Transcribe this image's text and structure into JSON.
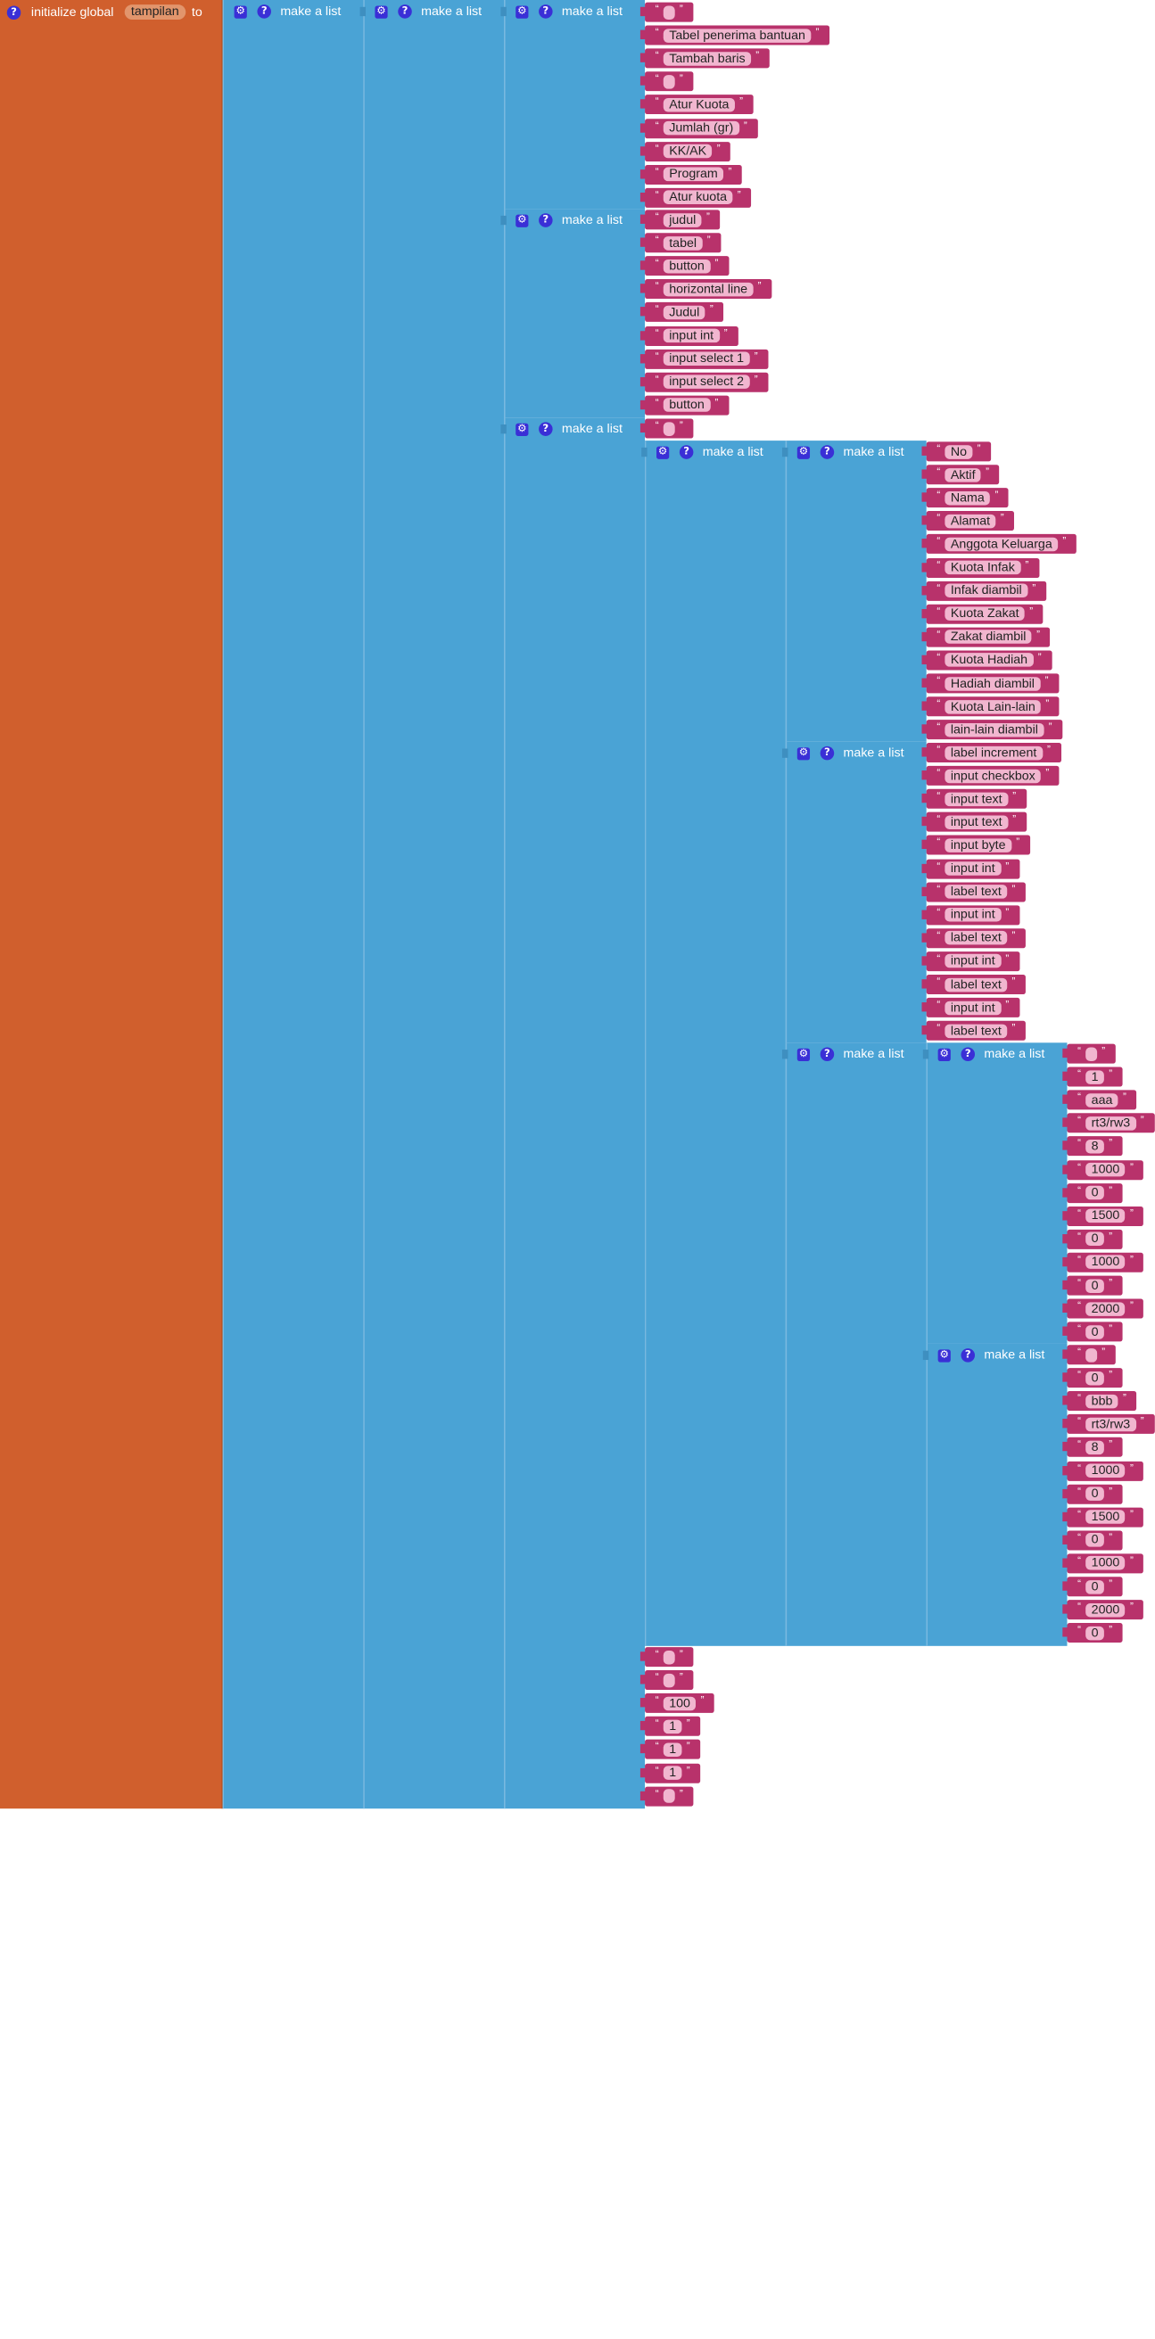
{
  "init": {
    "label": "initialize global",
    "var": "tampilan",
    "to": "to"
  },
  "make_list_label": "make a list",
  "l4a": [
    "",
    "Tabel penerima bantuan",
    "Tambah baris",
    "",
    "Atur Kuota",
    "Jumlah (gr)",
    "KK/AK",
    "Program",
    "Atur kuota"
  ],
  "l4b": [
    "judul",
    "tabel",
    "button",
    "horizontal line",
    "Judul",
    "input int",
    "input select 1",
    "input select 2",
    "button"
  ],
  "l4c_top": [
    ""
  ],
  "l6a": [
    "No",
    "Aktif",
    "Nama",
    "Alamat",
    "Anggota Keluarga",
    "Kuota Infak",
    "Infak diambil",
    "Kuota Zakat",
    "Zakat diambil",
    "Kuota Hadiah",
    "Hadiah diambil",
    "Kuota Lain-lain",
    "lain-lain diambil"
  ],
  "l6b": [
    "label increment",
    "input checkbox",
    "input text",
    "input text",
    "input byte",
    "input int",
    "label text",
    "input int",
    "label text",
    "input int",
    "label text",
    "input int",
    "label text"
  ],
  "l7a": [
    "",
    "1",
    "aaa",
    "rt3/rw3",
    "8",
    "1000",
    "0",
    "1500",
    "0",
    "1000",
    "0",
    "2000",
    "0"
  ],
  "l7b": [
    "",
    "0",
    "bbb",
    "rt3/rw3",
    "8",
    "1000",
    "0",
    "1500",
    "0",
    "1000",
    "0",
    "2000",
    "0"
  ],
  "l4c_tail": [
    "",
    "",
    "100",
    "1",
    "1",
    "1",
    ""
  ]
}
